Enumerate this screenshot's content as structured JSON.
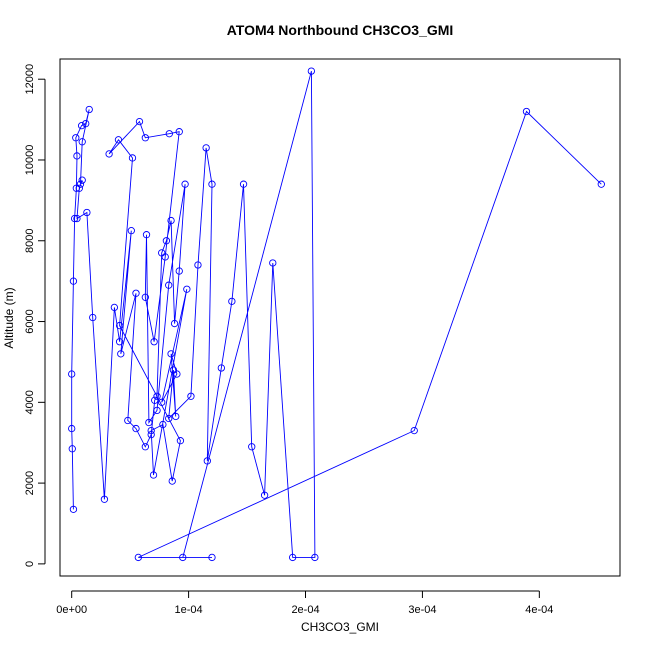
{
  "chart_data": {
    "type": "line",
    "title": "ATOM4 Northbound CH3CO3_GMI",
    "xlabel": "CH3CO3_GMI",
    "ylabel": "Altitude (m)",
    "xlim": [
      -1e-05,
      0.000469
    ],
    "ylim": [
      -300,
      12500
    ],
    "x_ticks": [
      {
        "value": 0,
        "label": "0e+00"
      },
      {
        "value": 0.0001,
        "label": "1e-04"
      },
      {
        "value": 0.0002,
        "label": "2e-04"
      },
      {
        "value": 0.0003,
        "label": "3e-04"
      },
      {
        "value": 0.0004,
        "label": "4e-04"
      }
    ],
    "y_ticks": [
      {
        "value": 0,
        "label": "0"
      },
      {
        "value": 2000,
        "label": "2000"
      },
      {
        "value": 4000,
        "label": "4000"
      },
      {
        "value": 6000,
        "label": "6000"
      },
      {
        "value": 8000,
        "label": "8000"
      },
      {
        "value": 10000,
        "label": "10000"
      },
      {
        "value": 12000,
        "label": "12000"
      }
    ],
    "grid": false,
    "legend": "none",
    "marker": "open-circle",
    "color": "#0000ff",
    "series": [
      {
        "x": [
          1.5e-06,
          5e-07,
          0.0,
          0.0,
          1.5e-06,
          2.5e-06,
          4e-06,
          4.5e-06,
          3.5e-06,
          8.5e-06,
          1.2e-05,
          1.5e-05,
          9e-06,
          7.5e-06,
          9e-06,
          6.5e-06,
          4.5e-06,
          1.3e-05,
          1.8e-05,
          2.8e-05,
          3.65e-05,
          4.1e-05,
          5.1e-05,
          4.2e-05,
          5.5e-05,
          4.8e-05,
          5.5e-05,
          6.3e-05,
          6.8e-05,
          7.1e-05,
          7.3e-05,
          7.7e-05,
          8.1e-05,
          8.5e-05,
          8.8e-05,
          9.2e-05,
          9.7e-05,
          8.3e-05,
          7.3e-05,
          6.6e-05,
          6.4e-05,
          6.3e-05,
          7.05e-05,
          8e-05,
          9.2e-05,
          8.35e-05,
          6.3e-05,
          5.8e-05,
          3.2e-05,
          4e-05,
          5.2e-05,
          4.1e-05,
          9.3e-05,
          8.6e-05,
          7.8e-05,
          6.8e-05,
          7e-05,
          9.85e-05,
          7.7e-05,
          9e-05,
          8.5e-05,
          8.9e-05,
          8.7e-05,
          8.3e-05,
          0.000102,
          0.000108,
          0.000115,
          0.00012,
          0.000116,
          0.000128,
          0.000137,
          0.000147,
          0.000154,
          0.000165,
          0.000172,
          0.000189,
          0.000208,
          0.000205,
          9.5e-05,
          0.00012,
          5.7e-05,
          0.000293,
          0.000389,
          0.000453
        ],
        "y": [
          1350,
          2850,
          3350,
          4700,
          7000,
          8550,
          9300,
          10100,
          10550,
          10850,
          10900,
          11250,
          10450,
          9400,
          9500,
          9300,
          8550,
          8700,
          6100,
          1600,
          6350,
          5500,
          8250,
          5200,
          6700,
          3550,
          3350,
          2900,
          3200,
          4050,
          4150,
          7700,
          8000,
          8500,
          5950,
          7250,
          9400,
          6900,
          3800,
          3500,
          8150,
          6600,
          5500,
          7600,
          10700,
          10650,
          10550,
          10950,
          10150,
          10500,
          10050,
          5900,
          3050,
          2050,
          3450,
          3300,
          2200,
          6800,
          4000,
          4700,
          5200,
          3650,
          4800,
          3600,
          4150,
          7400,
          10300,
          9400,
          2550,
          4850,
          6500,
          9400,
          2900,
          1700,
          7450,
          160,
          160,
          12200,
          160,
          160,
          160,
          3300,
          11200,
          9400
        ]
      }
    ]
  }
}
